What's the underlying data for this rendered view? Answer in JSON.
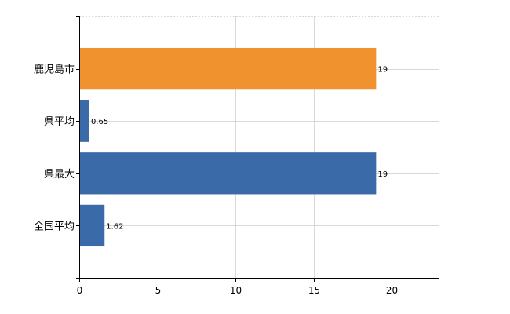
{
  "chart_data": {
    "type": "bar",
    "orientation": "horizontal",
    "categories": [
      "鹿児島市",
      "県平均",
      "県最大",
      "全国平均"
    ],
    "values": [
      19,
      0.65,
      19,
      1.62
    ],
    "data_labels": [
      "19",
      "0.65",
      "19",
      "1.62"
    ],
    "colors": [
      "#f0922e",
      "#3b6aa8",
      "#3b6aa8",
      "#3b6aa8"
    ],
    "xlim": [
      0,
      23
    ],
    "xticks": [
      0,
      5,
      10,
      15,
      20
    ],
    "grid": true,
    "title": "",
    "xlabel": "",
    "ylabel": ""
  }
}
